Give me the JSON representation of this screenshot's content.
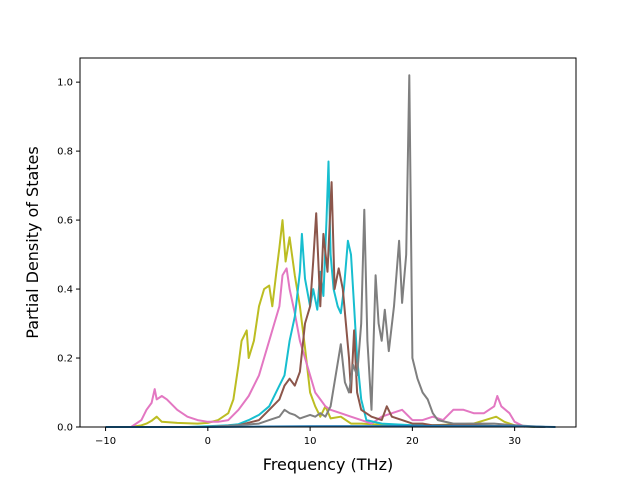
{
  "chart_data": {
    "type": "line",
    "title": "",
    "xlabel": "Frequency (THz)",
    "ylabel": "Partial Density of States",
    "xlim": [
      -12.5,
      36
    ],
    "ylim": [
      0,
      1.07
    ],
    "xticks": [
      -10,
      0,
      10,
      20,
      30
    ],
    "yticks": [
      0.0,
      0.2,
      0.4,
      0.6,
      0.8,
      1.0
    ],
    "xtick_labels": [
      "−10",
      "0",
      "10",
      "20",
      "30"
    ],
    "ytick_labels": [
      "0.0",
      "0.2",
      "0.4",
      "0.6",
      "0.8",
      "1.0"
    ],
    "grid": false,
    "legend": "none",
    "series": [
      {
        "color": "#bcbd22",
        "points": [
          [
            -10,
            0
          ],
          [
            -7.5,
            0
          ],
          [
            -6.5,
            0.005
          ],
          [
            -6,
            0.01
          ],
          [
            -5.5,
            0.018
          ],
          [
            -5,
            0.03
          ],
          [
            -4.5,
            0.015
          ],
          [
            -3,
            0.012
          ],
          [
            -1,
            0.01
          ],
          [
            0,
            0.012
          ],
          [
            1,
            0.02
          ],
          [
            2,
            0.04
          ],
          [
            2.5,
            0.08
          ],
          [
            3,
            0.18
          ],
          [
            3.3,
            0.25
          ],
          [
            3.8,
            0.28
          ],
          [
            4,
            0.2
          ],
          [
            4.5,
            0.25
          ],
          [
            5,
            0.35
          ],
          [
            5.5,
            0.4
          ],
          [
            6,
            0.41
          ],
          [
            6.3,
            0.35
          ],
          [
            6.7,
            0.45
          ],
          [
            7,
            0.52
          ],
          [
            7.3,
            0.6
          ],
          [
            7.6,
            0.48
          ],
          [
            8,
            0.55
          ],
          [
            8.5,
            0.44
          ],
          [
            9,
            0.35
          ],
          [
            9.5,
            0.23
          ],
          [
            10,
            0.1
          ],
          [
            10.5,
            0.06
          ],
          [
            11,
            0.03
          ],
          [
            11.5,
            0.06
          ],
          [
            12,
            0.025
          ],
          [
            13,
            0.03
          ],
          [
            14,
            0.01
          ],
          [
            15,
            0.01
          ],
          [
            18,
            0.005
          ],
          [
            22,
            0.005
          ],
          [
            26,
            0.01
          ],
          [
            28.2,
            0.03
          ],
          [
            29,
            0.015
          ],
          [
            30,
            0.005
          ],
          [
            32,
            0
          ]
        ]
      },
      {
        "color": "#e377c2",
        "points": [
          [
            -10,
            0
          ],
          [
            -7.5,
            0
          ],
          [
            -6.5,
            0.02
          ],
          [
            -6,
            0.05
          ],
          [
            -5.5,
            0.07
          ],
          [
            -5.2,
            0.11
          ],
          [
            -5,
            0.08
          ],
          [
            -4.5,
            0.09
          ],
          [
            -4,
            0.08
          ],
          [
            -3,
            0.05
          ],
          [
            -2,
            0.03
          ],
          [
            -1,
            0.02
          ],
          [
            0,
            0.015
          ],
          [
            1,
            0.015
          ],
          [
            2,
            0.02
          ],
          [
            3,
            0.05
          ],
          [
            4,
            0.09
          ],
          [
            5,
            0.15
          ],
          [
            5.5,
            0.2
          ],
          [
            6,
            0.25
          ],
          [
            6.5,
            0.3
          ],
          [
            7,
            0.35
          ],
          [
            7.3,
            0.44
          ],
          [
            7.7,
            0.46
          ],
          [
            8,
            0.4
          ],
          [
            8.5,
            0.33
          ],
          [
            9,
            0.25
          ],
          [
            9.5,
            0.2
          ],
          [
            10,
            0.15
          ],
          [
            10.5,
            0.1
          ],
          [
            11,
            0.08
          ],
          [
            11.5,
            0.06
          ],
          [
            12,
            0.05
          ],
          [
            13,
            0.04
          ],
          [
            14,
            0.03
          ],
          [
            15,
            0.02
          ],
          [
            16,
            0.01
          ],
          [
            17,
            0.03
          ],
          [
            18,
            0.04
          ],
          [
            19,
            0.05
          ],
          [
            20,
            0.02
          ],
          [
            21,
            0.02
          ],
          [
            22,
            0.03
          ],
          [
            23,
            0.02
          ],
          [
            24,
            0.05
          ],
          [
            25,
            0.05
          ],
          [
            26,
            0.04
          ],
          [
            27,
            0.04
          ],
          [
            28,
            0.06
          ],
          [
            28.3,
            0.09
          ],
          [
            28.7,
            0.06
          ],
          [
            29.5,
            0.04
          ],
          [
            30,
            0.015
          ],
          [
            31,
            0
          ]
        ]
      },
      {
        "color": "#17becf",
        "points": [
          [
            -10,
            0
          ],
          [
            -2,
            0
          ],
          [
            0,
            0.002
          ],
          [
            2,
            0.005
          ],
          [
            3,
            0.008
          ],
          [
            4,
            0.02
          ],
          [
            5,
            0.035
          ],
          [
            6,
            0.06
          ],
          [
            7,
            0.12
          ],
          [
            7.5,
            0.15
          ],
          [
            8,
            0.25
          ],
          [
            8.5,
            0.32
          ],
          [
            9,
            0.45
          ],
          [
            9.2,
            0.56
          ],
          [
            9.5,
            0.43
          ],
          [
            10,
            0.35
          ],
          [
            10.3,
            0.4
          ],
          [
            10.7,
            0.34
          ],
          [
            11,
            0.45
          ],
          [
            11.3,
            0.38
          ],
          [
            11.6,
            0.6
          ],
          [
            11.8,
            0.77
          ],
          [
            12,
            0.5
          ],
          [
            12.3,
            0.4
          ],
          [
            12.7,
            0.35
          ],
          [
            13,
            0.33
          ],
          [
            13.3,
            0.4
          ],
          [
            13.7,
            0.54
          ],
          [
            14,
            0.5
          ],
          [
            14.3,
            0.35
          ],
          [
            14.6,
            0.2
          ],
          [
            15,
            0.08
          ],
          [
            15.5,
            0.02
          ],
          [
            17,
            0.01
          ],
          [
            20,
            0.005
          ],
          [
            25,
            0.005
          ],
          [
            30,
            0.002
          ],
          [
            33,
            0
          ]
        ]
      },
      {
        "color": "#8c564b",
        "points": [
          [
            -10,
            0
          ],
          [
            0,
            0
          ],
          [
            3,
            0.005
          ],
          [
            5,
            0.02
          ],
          [
            6,
            0.05
          ],
          [
            7,
            0.08
          ],
          [
            7.5,
            0.12
          ],
          [
            8,
            0.14
          ],
          [
            8.5,
            0.12
          ],
          [
            9,
            0.16
          ],
          [
            9.5,
            0.3
          ],
          [
            10,
            0.35
          ],
          [
            10.3,
            0.48
          ],
          [
            10.6,
            0.62
          ],
          [
            11,
            0.35
          ],
          [
            11.3,
            0.56
          ],
          [
            11.7,
            0.45
          ],
          [
            12.1,
            0.71
          ],
          [
            12.4,
            0.4
          ],
          [
            12.8,
            0.46
          ],
          [
            13.2,
            0.4
          ],
          [
            13.5,
            0.3
          ],
          [
            13.8,
            0.2
          ],
          [
            14,
            0.1
          ],
          [
            14.3,
            0.28
          ],
          [
            14.6,
            0.1
          ],
          [
            15,
            0.05
          ],
          [
            16,
            0.03
          ],
          [
            17,
            0.02
          ],
          [
            17.5,
            0.06
          ],
          [
            18,
            0.03
          ],
          [
            19,
            0.02
          ],
          [
            20,
            0.01
          ],
          [
            21,
            0.01
          ],
          [
            22,
            0.005
          ],
          [
            25,
            0.005
          ],
          [
            30,
            0.002
          ],
          [
            33,
            0
          ]
        ]
      },
      {
        "color": "#7f7f7f",
        "points": [
          [
            -10,
            0
          ],
          [
            0,
            0
          ],
          [
            3,
            0.005
          ],
          [
            5,
            0.01
          ],
          [
            6,
            0.02
          ],
          [
            7,
            0.03
          ],
          [
            7.5,
            0.05
          ],
          [
            8,
            0.04
          ],
          [
            8.5,
            0.035
          ],
          [
            9,
            0.025
          ],
          [
            9.5,
            0.03
          ],
          [
            10,
            0.035
          ],
          [
            10.5,
            0.03
          ],
          [
            11,
            0.04
          ],
          [
            11.5,
            0.03
          ],
          [
            12,
            0.06
          ],
          [
            12.5,
            0.15
          ],
          [
            13,
            0.24
          ],
          [
            13.4,
            0.13
          ],
          [
            13.8,
            0.1
          ],
          [
            14.2,
            0.18
          ],
          [
            14.6,
            0.15
          ],
          [
            15,
            0.3
          ],
          [
            15.3,
            0.63
          ],
          [
            15.6,
            0.25
          ],
          [
            16,
            0.05
          ],
          [
            16.4,
            0.44
          ],
          [
            16.7,
            0.3
          ],
          [
            17,
            0.25
          ],
          [
            17.3,
            0.34
          ],
          [
            17.7,
            0.22
          ],
          [
            18.2,
            0.35
          ],
          [
            18.7,
            0.54
          ],
          [
            19,
            0.36
          ],
          [
            19.4,
            0.5
          ],
          [
            19.7,
            1.02
          ],
          [
            20,
            0.2
          ],
          [
            20.5,
            0.14
          ],
          [
            21,
            0.1
          ],
          [
            21.5,
            0.08
          ],
          [
            22,
            0.04
          ],
          [
            22.5,
            0.02
          ],
          [
            24,
            0.01
          ],
          [
            26,
            0.01
          ],
          [
            28,
            0.01
          ],
          [
            30,
            0.005
          ],
          [
            33,
            0
          ]
        ]
      },
      {
        "color": "#1f77b4",
        "points": [
          [
            -10,
            0
          ],
          [
            0,
            0
          ],
          [
            10,
            0.002
          ],
          [
            20,
            0.003
          ],
          [
            30,
            0.002
          ],
          [
            34,
            0
          ]
        ]
      }
    ]
  }
}
